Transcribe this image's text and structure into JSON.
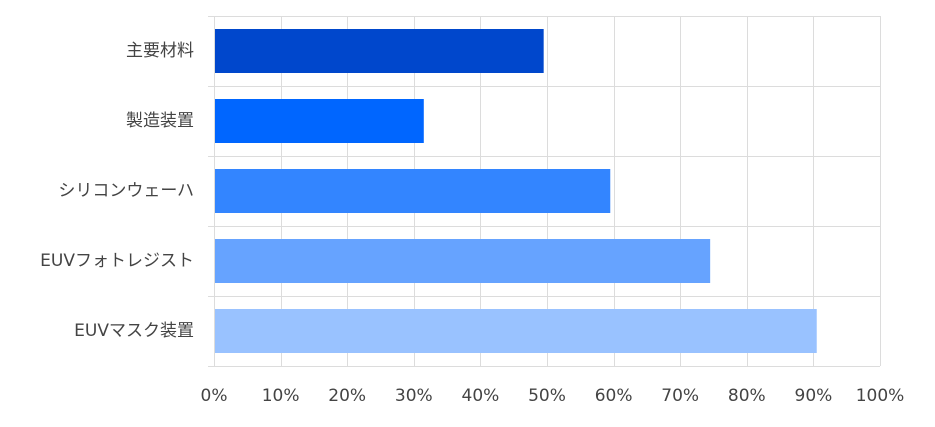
{
  "chart_data": {
    "type": "bar",
    "orientation": "horizontal",
    "categories": [
      "主要材料",
      "製造装置",
      "シリコンウェーハ",
      "EUVフォトレジスト",
      "EUVマスク装置"
    ],
    "values": [
      49.5,
      31.5,
      59.5,
      74.5,
      90.5
    ],
    "bar_colors": [
      "#0047CC",
      "#0066FF",
      "#3385FF",
      "#66A3FF",
      "#99C2FF"
    ],
    "xlim": [
      0,
      100
    ],
    "x_ticks": [
      0,
      10,
      20,
      30,
      40,
      50,
      60,
      70,
      80,
      90,
      100
    ],
    "x_tick_labels": [
      "0%",
      "10%",
      "20%",
      "30%",
      "40%",
      "50%",
      "60%",
      "70%",
      "80%",
      "90%",
      "100%"
    ],
    "grid": true,
    "legend": "none"
  }
}
